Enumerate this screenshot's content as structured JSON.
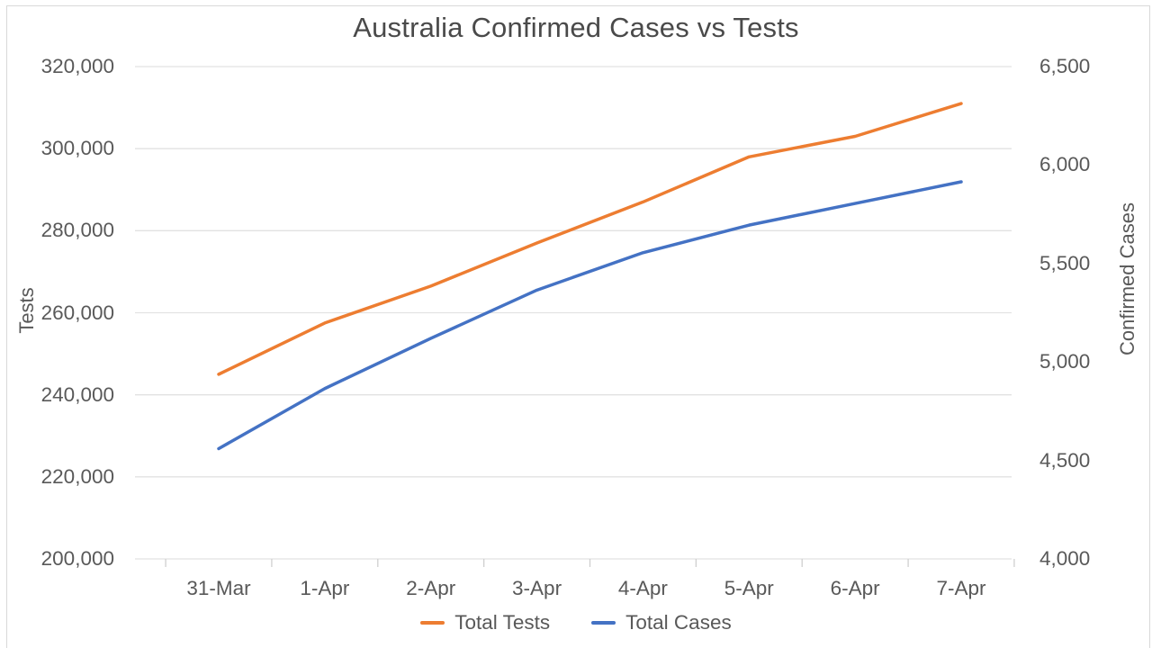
{
  "chart_data": {
    "type": "line",
    "title": "Australia Confirmed Cases vs Tests",
    "categories": [
      "31-Mar",
      "1-Apr",
      "2-Apr",
      "3-Apr",
      "4-Apr",
      "5-Apr",
      "6-Apr",
      "7-Apr"
    ],
    "series": [
      {
        "name": "Total Tests",
        "axis": "left",
        "color": "#ED7D31",
        "values": [
          245000,
          257500,
          266500,
          277000,
          287000,
          298000,
          303000,
          311000
        ]
      },
      {
        "name": "Total Cases",
        "axis": "right",
        "color": "#4472C4",
        "values": [
          4560,
          4865,
          5120,
          5365,
          5555,
          5695,
          5805,
          5915
        ]
      }
    ],
    "left_axis": {
      "label": "Tests",
      "min": 200000,
      "max": 320000,
      "tick_step": 20000,
      "tick_labels": [
        "320,000",
        "300,000",
        "280,000",
        "260,000",
        "240,000",
        "220,000",
        "200,000"
      ]
    },
    "right_axis": {
      "label": "Confirmed Cases",
      "min": 4000,
      "max": 6500,
      "tick_step": 500,
      "tick_labels": [
        "6,500",
        "6,000",
        "5,500",
        "5,000",
        "4,500",
        "4,000"
      ]
    },
    "grid": true,
    "legend_position": "bottom"
  },
  "colors": {
    "background": "#ffffff",
    "gridline": "#e2e2e2",
    "axis_tick": "#cfcfcf",
    "text": "#595959",
    "title_text": "#4a4a4a",
    "frame_border": "#d9d9d9",
    "total_tests_line": "#ED7D31",
    "total_cases_line": "#4472C4"
  }
}
